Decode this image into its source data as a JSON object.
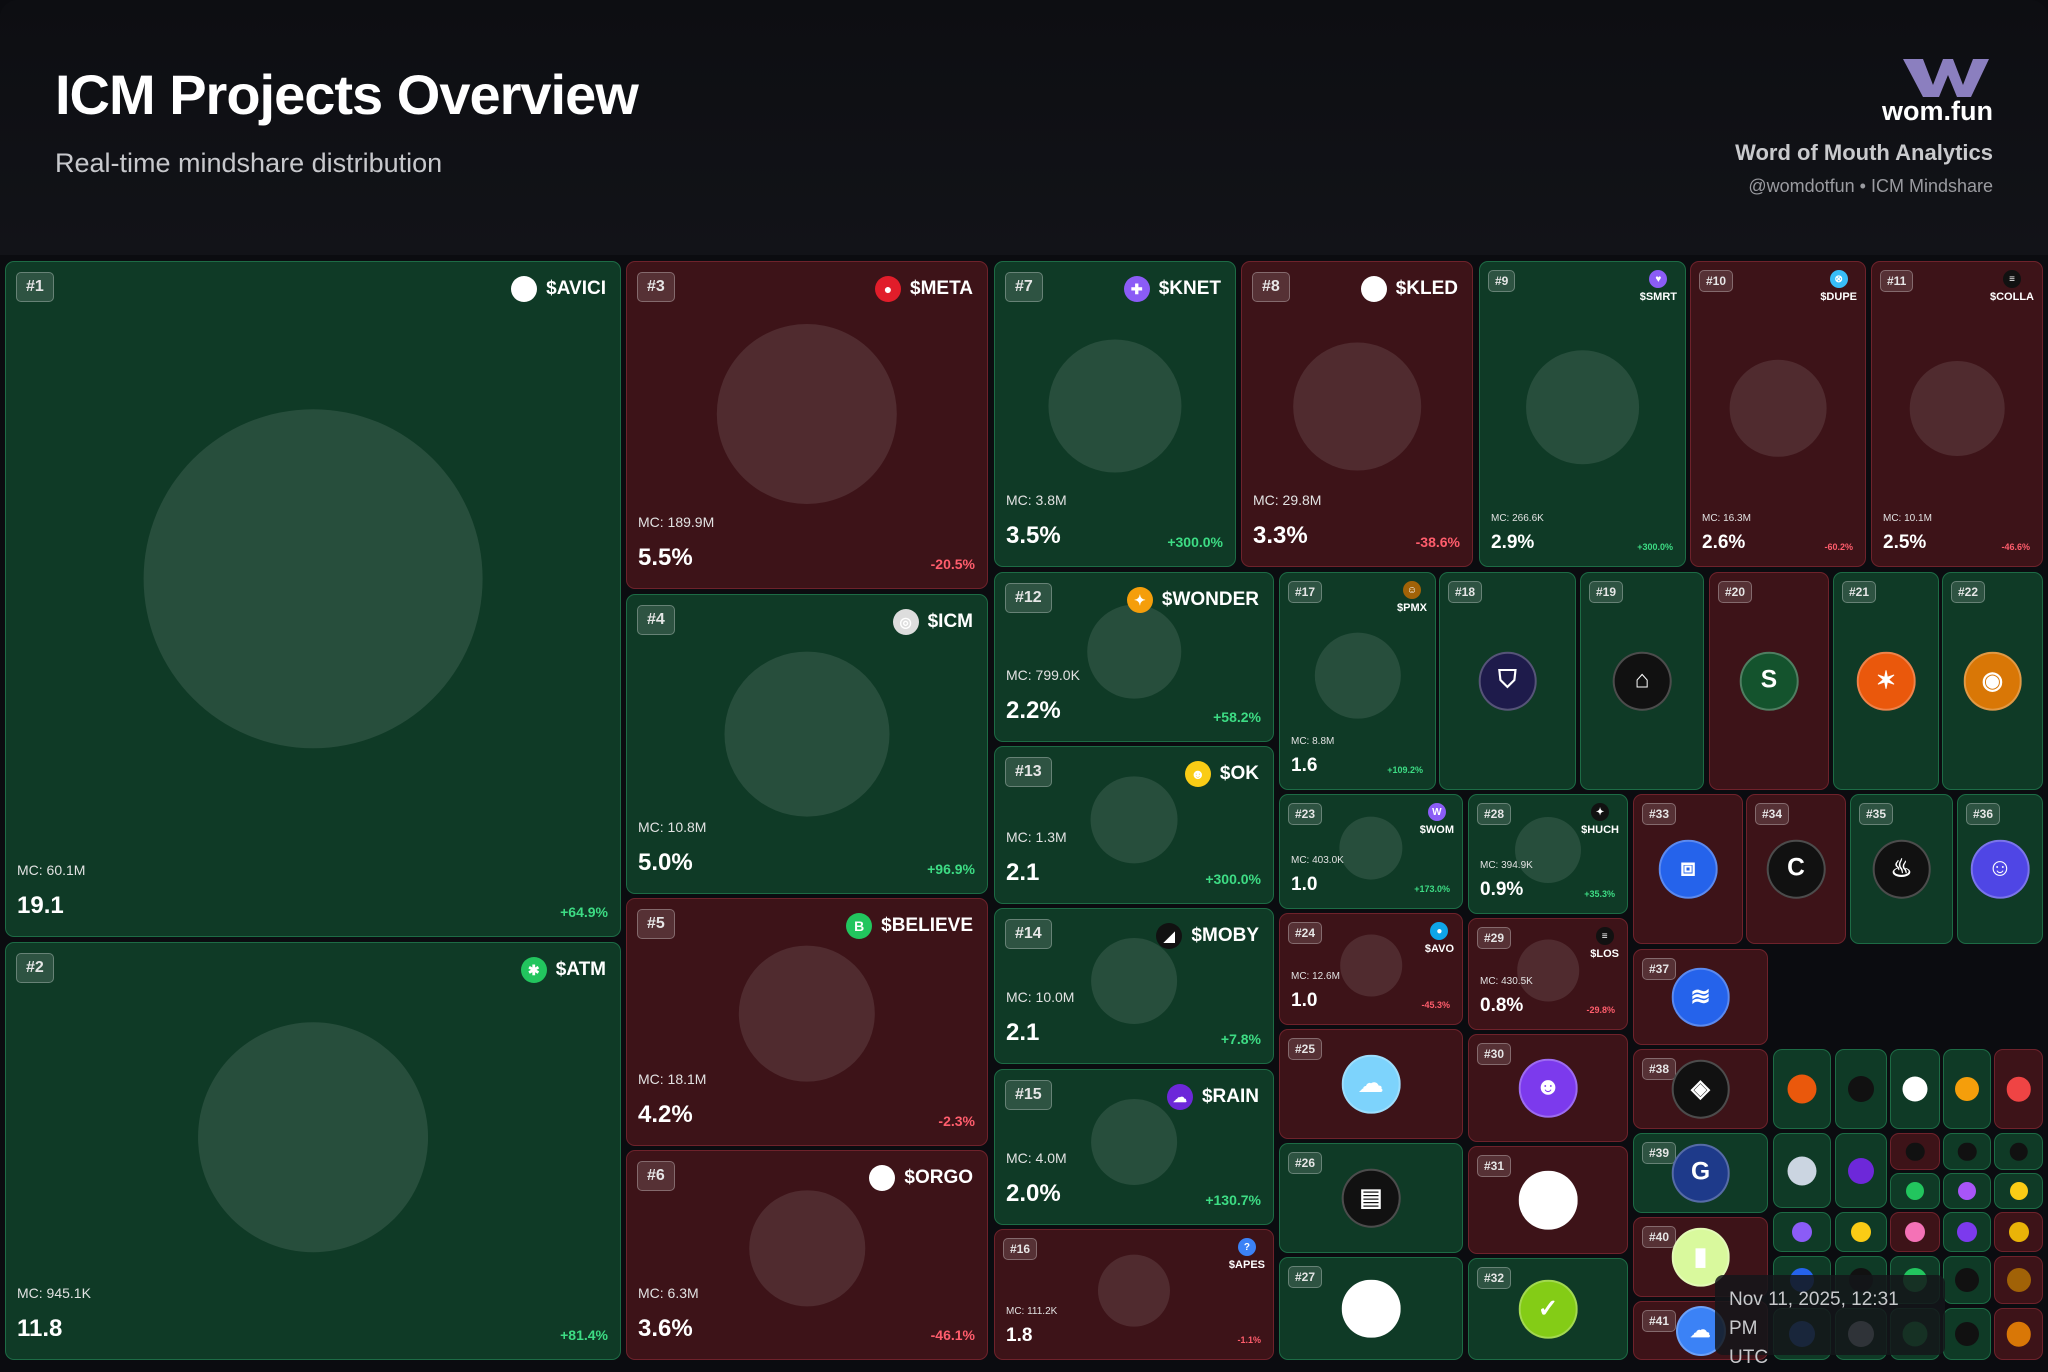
{
  "header": {
    "title": "ICM Projects Overview",
    "subtitle": "Real-time mindshare distribution",
    "brand_name": "wom.fun",
    "brand_tagline": "Word of Mouth Analytics",
    "brand_handle": "@womdotfun • ICM Mindshare"
  },
  "colors": {
    "up": "#0f3a26",
    "down": "#3d1318",
    "positive_text": "#3ddc84",
    "negative_text": "#ff5d6c"
  },
  "tiles": [
    {
      "rank": "#1",
      "ticker": "$AVICI",
      "mc": "MC: 60.1M",
      "share": "19.1",
      "change": "+64.9%",
      "trend": "up",
      "icon": "avici-icon",
      "icon_color": "#ffffff"
    },
    {
      "rank": "#2",
      "ticker": "$ATM",
      "mc": "MC: 945.1K",
      "share": "11.8",
      "change": "+81.4%",
      "trend": "up",
      "icon": "atm-icon",
      "icon_color": "#22c55e"
    },
    {
      "rank": "#3",
      "ticker": "$META",
      "mc": "MC: 189.9M",
      "share": "5.5%",
      "change": "-20.5%",
      "trend": "down",
      "icon": "meta-icon",
      "icon_color": "#e11d2a"
    },
    {
      "rank": "#4",
      "ticker": "$ICM",
      "mc": "MC: 10.8M",
      "share": "5.0%",
      "change": "+96.9%",
      "trend": "up",
      "icon": "icm-icon",
      "icon_color": "#dddddd"
    },
    {
      "rank": "#5",
      "ticker": "$BELIEVE",
      "mc": "MC: 18.1M",
      "share": "4.2%",
      "change": "-2.3%",
      "trend": "down",
      "icon": "believe-icon",
      "icon_color": "#22c55e"
    },
    {
      "rank": "#6",
      "ticker": "$ORGO",
      "mc": "MC: 6.3M",
      "share": "3.6%",
      "change": "-46.1%",
      "trend": "down",
      "icon": "orgo-icon",
      "icon_color": "#ffffff"
    },
    {
      "rank": "#7",
      "ticker": "$KNET",
      "mc": "MC: 3.8M",
      "share": "3.5%",
      "change": "+300.0%",
      "trend": "up",
      "icon": "knet-icon",
      "icon_color": "#8b5cf6"
    },
    {
      "rank": "#8",
      "ticker": "$KLED",
      "mc": "MC: 29.8M",
      "share": "3.3%",
      "change": "-38.6%",
      "trend": "down",
      "icon": "kled-icon",
      "icon_color": "#ffffff"
    },
    {
      "rank": "#9",
      "ticker": "$SMRT",
      "mc": "MC: 266.6K",
      "share": "2.9%",
      "change": "+300.0%",
      "trend": "up",
      "icon": "smrt-icon",
      "icon_color": "#8b5cf6"
    },
    {
      "rank": "#10",
      "ticker": "$DUPE",
      "mc": "MC: 16.3M",
      "share": "2.6%",
      "change": "-60.2%",
      "trend": "down",
      "icon": "dupe-icon",
      "icon_color": "#38bdf8"
    },
    {
      "rank": "#11",
      "ticker": "$COLLA",
      "mc": "MC: 10.1M",
      "share": "2.5%",
      "change": "-46.6%",
      "trend": "down",
      "icon": "colla-icon",
      "icon_color": "#111111"
    },
    {
      "rank": "#12",
      "ticker": "$WONDER",
      "mc": "MC: 799.0K",
      "share": "2.2%",
      "change": "+58.2%",
      "trend": "up",
      "icon": "wonder-icon",
      "icon_color": "#f59e0b"
    },
    {
      "rank": "#13",
      "ticker": "$OK",
      "mc": "MC: 1.3M",
      "share": "2.1",
      "change": "+300.0%",
      "trend": "up",
      "icon": "ok-icon",
      "icon_color": "#facc15"
    },
    {
      "rank": "#14",
      "ticker": "$MOBY",
      "mc": "MC: 10.0M",
      "share": "2.1",
      "change": "+7.8%",
      "trend": "up",
      "icon": "moby-icon",
      "icon_color": "#111111"
    },
    {
      "rank": "#15",
      "ticker": "$RAIN",
      "mc": "MC: 4.0M",
      "share": "2.0%",
      "change": "+130.7%",
      "trend": "up",
      "icon": "rain-icon",
      "icon_color": "#6d28d9"
    },
    {
      "rank": "#16",
      "ticker": "$APES",
      "mc": "MC: 111.2K",
      "share": "1.8",
      "change": "-1.1%",
      "trend": "down",
      "icon": "apes-icon",
      "icon_color": "#3b82f6"
    },
    {
      "rank": "#17",
      "ticker": "$PMX",
      "mc": "MC: 8.8M",
      "share": "1.6",
      "change": "+109.2%",
      "trend": "up",
      "icon": "pmx-icon",
      "icon_color": "#a16207"
    },
    {
      "rank": "#18",
      "trend": "up",
      "icon": "shield-icon",
      "icon_color": "#1e1b4b"
    },
    {
      "rank": "#19",
      "trend": "up",
      "icon": "house-icon",
      "icon_color": "#111111"
    },
    {
      "rank": "#20",
      "trend": "down",
      "icon": "s-icon",
      "icon_color": "#14532d"
    },
    {
      "rank": "#21",
      "trend": "up",
      "icon": "fox-icon",
      "icon_color": "#ea580c"
    },
    {
      "rank": "#22",
      "trend": "up",
      "icon": "spiral-icon",
      "icon_color": "#d97706"
    },
    {
      "rank": "#23",
      "ticker": "$WOM",
      "mc": "MC: 403.0K",
      "share": "1.0",
      "change": "+173.0%",
      "trend": "up",
      "icon": "wom-icon",
      "icon_color": "#8b5cf6"
    },
    {
      "rank": "#24",
      "ticker": "$AVO",
      "mc": "MC: 12.6M",
      "share": "1.0",
      "change": "-45.3%",
      "trend": "down",
      "icon": "avo-icon",
      "icon_color": "#0ea5e9"
    },
    {
      "rank": "#25",
      "trend": "down",
      "icon": "cloud-icon",
      "icon_color": "#7dd3fc"
    },
    {
      "rank": "#26",
      "trend": "up",
      "icon": "card-icon",
      "icon_color": "#111111"
    },
    {
      "rank": "#27",
      "trend": "up",
      "icon": "swirl-icon",
      "icon_color": "#ffffff"
    },
    {
      "rank": "#28",
      "ticker": "$HUCH",
      "mc": "MC: 394.9K",
      "share": "0.9%",
      "change": "+35.3%",
      "trend": "up",
      "icon": "huch-icon",
      "icon_color": "#111111"
    },
    {
      "rank": "#29",
      "ticker": "$LOS",
      "mc": "MC: 430.5K",
      "share": "0.8%",
      "change": "-29.8%",
      "trend": "down",
      "icon": "los-icon",
      "icon_color": "#111111"
    },
    {
      "rank": "#30",
      "trend": "down",
      "icon": "cat-icon",
      "icon_color": "#7c3aed"
    },
    {
      "rank": "#31",
      "trend": "down",
      "icon": "tree-icon",
      "icon_color": "#ffffff"
    },
    {
      "rank": "#32",
      "trend": "up",
      "icon": "check-icon",
      "icon_color": "#84cc16"
    },
    {
      "rank": "#33",
      "trend": "down",
      "icon": "cube-icon",
      "icon_color": "#2563eb"
    },
    {
      "rank": "#34",
      "trend": "down",
      "icon": "c-icon",
      "icon_color": "#111111"
    },
    {
      "rank": "#35",
      "trend": "up",
      "icon": "fire-icon",
      "icon_color": "#111111"
    },
    {
      "rank": "#36",
      "trend": "up",
      "icon": "mask-icon",
      "icon_color": "#4f46e5"
    },
    {
      "rank": "#37",
      "trend": "down",
      "icon": "coin-stack-icon",
      "icon_color": "#2563eb"
    },
    {
      "rank": "#38",
      "trend": "down",
      "icon": "layers-icon",
      "icon_color": "#111111"
    },
    {
      "rank": "#39",
      "trend": "up",
      "icon": "globe-icon",
      "icon_color": "#1e3a8a"
    },
    {
      "rank": "#40",
      "trend": "down",
      "icon": "bars-icon",
      "icon_color": "#d9f99d"
    },
    {
      "rank": "#41",
      "trend": "down",
      "icon": "cloud-blue-icon",
      "icon_color": "#3b82f6"
    }
  ],
  "timestamp": {
    "line1": "Nov 11, 2025, 12:31 PM",
    "line2": "UTC"
  }
}
